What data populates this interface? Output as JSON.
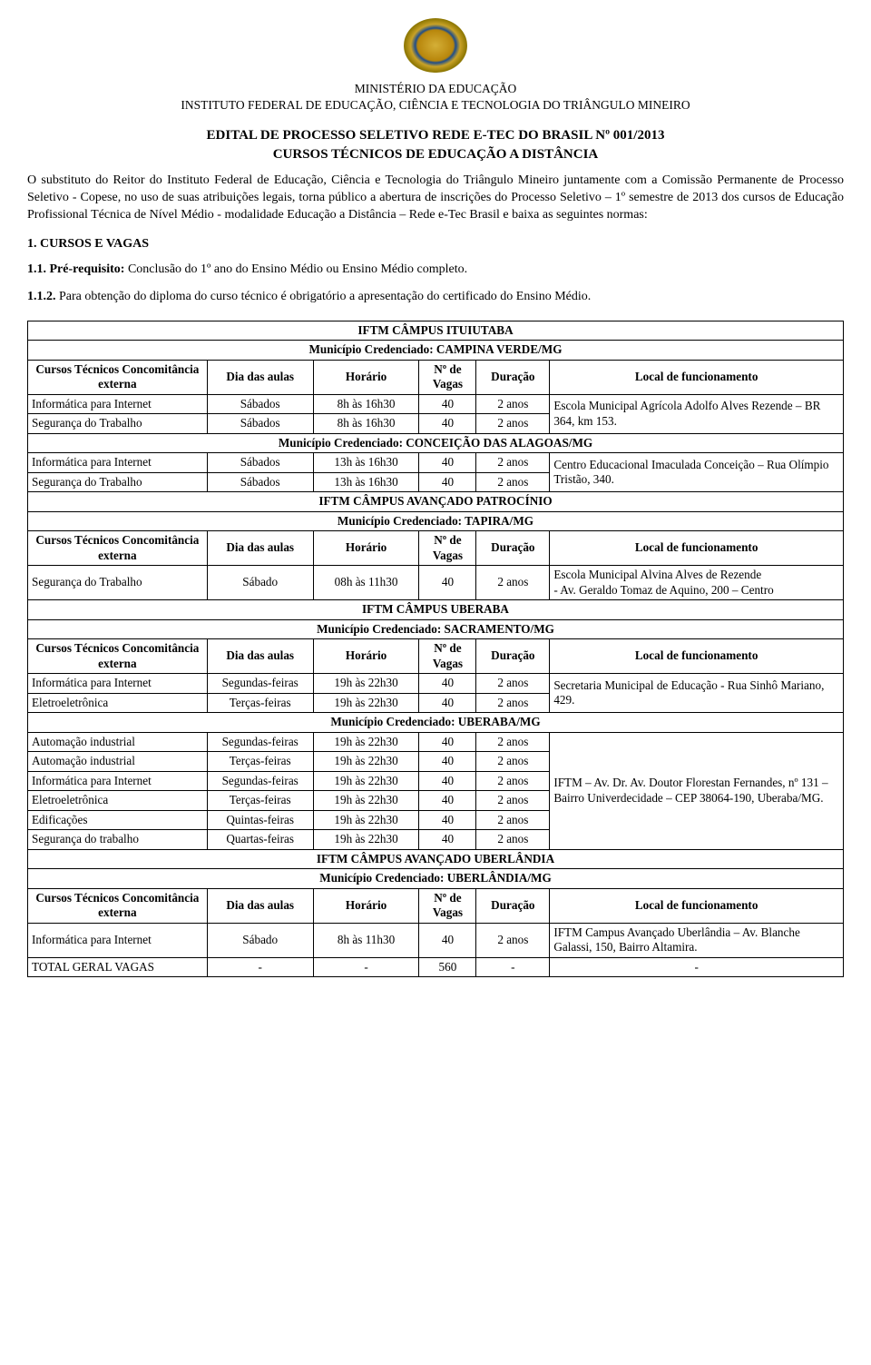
{
  "header": {
    "ministry": "MINISTÉRIO DA EDUCAÇÃO",
    "institute": "INSTITUTO FEDERAL DE EDUCAÇÃO, CIÊNCIA E TECNOLOGIA DO TRIÂNGULO MINEIRO",
    "edital_line1": "EDITAL DE PROCESSO SELETIVO REDE E-TEC DO BRASIL Nº 001/2013",
    "edital_line2": "CURSOS TÉCNICOS DE EDUCAÇÃO A DISTÂNCIA"
  },
  "intro_text": "O substituto do Reitor do Instituto Federal de Educação, Ciência e Tecnologia do Triângulo Mineiro juntamente com a Comissão Permanente de Processo Seletivo - Copese, no uso de suas atribuições legais, torna público a abertura de inscrições do Processo Seletivo – 1º semestre de 2013 dos cursos de Educação Profissional Técnica de Nível Médio - modalidade Educação a Distância – Rede e-Tec Brasil e baixa as seguintes normas:",
  "sec1_title": "1. CURSOS E VAGAS",
  "p11_bold": "1.1. Pré-requisito:",
  "p11_rest": " Conclusão do 1º ano do Ensino Médio ou Ensino Médio completo.",
  "p112_bold": "1.1.2.",
  "p112_rest": " Para obtenção do diploma do curso técnico é obrigatório a apresentação do certificado do Ensino Médio.",
  "col_headers": {
    "curso": "Cursos Técnicos Concomitância externa",
    "dia": "Dia das aulas",
    "horario": "Horário",
    "vagas": "Nº de Vagas",
    "duracao": "Duração",
    "local": "Local de funcionamento"
  },
  "campus": [
    {
      "name": "IFTM CÂMPUS ITUIUTABA",
      "municipios": [
        {
          "name": "Município Credenciado: CAMPINA VERDE/MG",
          "show_headers": true,
          "rows": [
            {
              "curso": "Informática para Internet",
              "dia": "Sábados",
              "hor": "8h às 16h30",
              "vagas": "40",
              "dur": "2 anos"
            },
            {
              "curso": "Segurança do Trabalho",
              "dia": "Sábados",
              "hor": "8h às 16h30",
              "vagas": "40",
              "dur": "2 anos"
            }
          ],
          "local_span": "Escola Municipal Agrícola Adolfo Alves Rezende – BR 364, km 153."
        },
        {
          "name": "Município Credenciado: CONCEIÇÃO DAS ALAGOAS/MG",
          "show_headers": false,
          "rows": [
            {
              "curso": "Informática para Internet",
              "dia": "Sábados",
              "hor": "13h às 16h30",
              "vagas": "40",
              "dur": "2 anos"
            },
            {
              "curso": "Segurança do Trabalho",
              "dia": "Sábados",
              "hor": "13h às 16h30",
              "vagas": "40",
              "dur": "2 anos"
            }
          ],
          "local_span": "Centro Educacional Imaculada Conceição – Rua Olímpio Tristão, 340."
        }
      ]
    },
    {
      "name": "IFTM CÂMPUS AVANÇADO PATROCÍNIO",
      "municipios": [
        {
          "name": "Município Credenciado: TAPIRA/MG",
          "show_headers": true,
          "rows": [
            {
              "curso": "Segurança do Trabalho",
              "dia": "Sábado",
              "hor": "08h às 11h30",
              "vagas": "40",
              "dur": "2 anos"
            }
          ],
          "local_span": "Escola Municipal Alvina Alves de Rezende\n- Av. Geraldo Tomaz de Aquino, 200 – Centro"
        }
      ]
    },
    {
      "name": "IFTM CÂMPUS UBERABA",
      "municipios": [
        {
          "name": "Município Credenciado: SACRAMENTO/MG",
          "show_headers": true,
          "rows": [
            {
              "curso": "Informática para Internet",
              "dia": "Segundas-feiras",
              "hor": "19h às 22h30",
              "vagas": "40",
              "dur": "2 anos"
            },
            {
              "curso": "Eletroeletrônica",
              "dia": "Terças-feiras",
              "hor": "19h às 22h30",
              "vagas": "40",
              "dur": "2 anos"
            }
          ],
          "local_span": "Secretaria Municipal de Educação - Rua Sinhô Mariano, 429."
        },
        {
          "name": "Município Credenciado: UBERABA/MG",
          "show_headers": false,
          "rows": [
            {
              "curso": "Automação industrial",
              "dia": "Segundas-feiras",
              "hor": "19h às 22h30",
              "vagas": "40",
              "dur": "2 anos"
            },
            {
              "curso": "Automação industrial",
              "dia": "Terças-feiras",
              "hor": "19h às 22h30",
              "vagas": "40",
              "dur": "2 anos"
            },
            {
              "curso": "Informática para Internet",
              "dia": "Segundas-feiras",
              "hor": "19h às 22h30",
              "vagas": "40",
              "dur": "2 anos"
            },
            {
              "curso": "Eletroeletrônica",
              "dia": "Terças-feiras",
              "hor": "19h às 22h30",
              "vagas": "40",
              "dur": "2 anos"
            },
            {
              "curso": "Edificações",
              "dia": "Quintas-feiras",
              "hor": "19h às 22h30",
              "vagas": "40",
              "dur": "2 anos"
            },
            {
              "curso": "Segurança do trabalho",
              "dia": "Quartas-feiras",
              "hor": "19h às 22h30",
              "vagas": "40",
              "dur": "2 anos"
            }
          ],
          "local_span": "IFTM – Av. Dr. Av. Doutor Florestan Fernandes, nº 131 – Bairro Univerdecidade – CEP 38064-190, Uberaba/MG."
        }
      ]
    },
    {
      "name": "IFTM CÂMPUS AVANÇADO UBERLÂNDIA",
      "municipios": [
        {
          "name": "Município Credenciado: UBERLÂNDIA/MG",
          "show_headers": true,
          "rows": [
            {
              "curso": "Informática para Internet",
              "dia": "Sábado",
              "hor": "8h às 11h30",
              "vagas": "40",
              "dur": "2 anos"
            }
          ],
          "local_span": "IFTM Campus Avançado Uberlândia – Av. Blanche Galassi, 150, Bairro Altamira."
        }
      ]
    }
  ],
  "total_row": {
    "label": "TOTAL GERAL  VAGAS",
    "dia": "-",
    "hor": "-",
    "vagas": "560",
    "dur": "-",
    "local": "-"
  },
  "styling": {
    "page_bg": "#ffffff",
    "text_color": "#000000",
    "border_color": "#000000",
    "font_family": "Times New Roman",
    "body_fontsize_pt": 11,
    "title_fontsize_pt": 12,
    "table_fontsize_pt": 10
  }
}
